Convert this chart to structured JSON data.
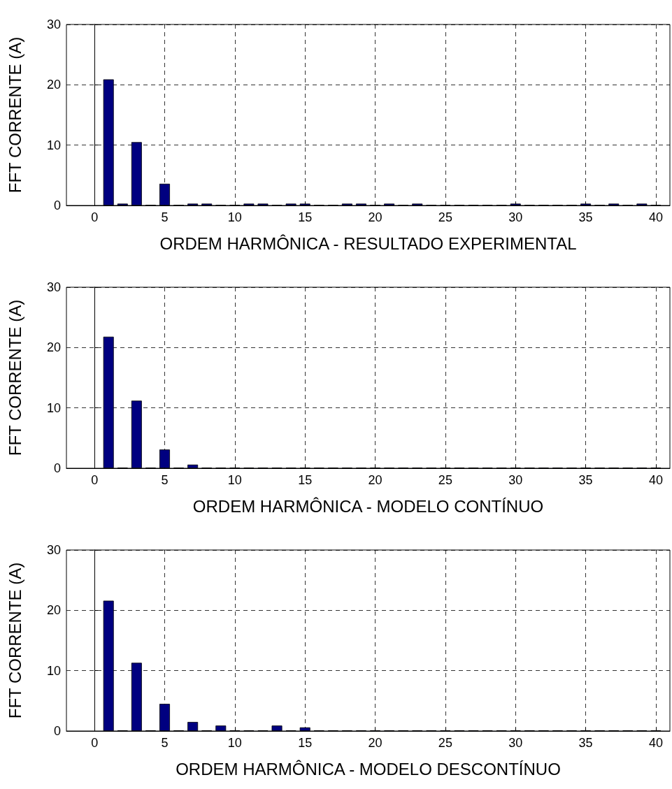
{
  "chart_data": [
    {
      "type": "bar",
      "xlabel": "ORDEM HARMÔNICA - RESULTADO EXPERIMENTAL",
      "ylabel": "FFT CORRENTE (A)",
      "color": "#000080",
      "x": [
        1,
        2,
        3,
        4,
        5,
        6,
        7,
        8,
        9,
        10,
        11,
        12,
        13,
        14,
        15,
        16,
        17,
        18,
        19,
        20,
        21,
        22,
        23,
        24,
        25,
        26,
        27,
        28,
        29,
        30,
        31,
        32,
        33,
        34,
        35,
        36,
        37,
        38,
        39,
        40
      ],
      "values": [
        20.9,
        0.3,
        10.5,
        0.1,
        3.6,
        0.1,
        0.3,
        0.3,
        0.1,
        0.1,
        0.3,
        0.3,
        0.1,
        0.3,
        0.3,
        0.1,
        0.1,
        0.3,
        0.3,
        0.1,
        0.3,
        0.1,
        0.3,
        0.1,
        0.1,
        0.1,
        0.1,
        0.1,
        0.1,
        0.3,
        0.1,
        0.1,
        0.1,
        0.1,
        0.3,
        0.1,
        0.3,
        0.1,
        0.3,
        0.1
      ],
      "xlim": [
        -2,
        41
      ],
      "xticks": [
        0,
        5,
        10,
        15,
        20,
        25,
        30,
        35,
        40
      ],
      "ylim": [
        0,
        30
      ],
      "yticks": [
        0,
        10,
        20,
        30
      ],
      "grid": true
    },
    {
      "type": "bar",
      "xlabel": "ORDEM HARMÔNICA - MODELO CONTÍNUO",
      "ylabel": "FFT CORRENTE (A)",
      "color": "#000080",
      "x": [
        1,
        2,
        3,
        4,
        5,
        6,
        7,
        8,
        9,
        10,
        11,
        12,
        13,
        14,
        15,
        16,
        17,
        18,
        19,
        20,
        21,
        22,
        23,
        24,
        25,
        26,
        27,
        28,
        29,
        30,
        31,
        32,
        33,
        34,
        35,
        36,
        37,
        38,
        39,
        40
      ],
      "values": [
        21.8,
        0.1,
        11.2,
        0.1,
        3.1,
        0.1,
        0.6,
        0.1,
        0.1,
        0.1,
        0.1,
        0.1,
        0.1,
        0.1,
        0.1,
        0.1,
        0.1,
        0.1,
        0.1,
        0.1,
        0.1,
        0.1,
        0.1,
        0.1,
        0.1,
        0.1,
        0.1,
        0.1,
        0.1,
        0.1,
        0.1,
        0.1,
        0.1,
        0.1,
        0.1,
        0.1,
        0.1,
        0.1,
        0.1,
        0.1
      ],
      "xlim": [
        -2,
        41
      ],
      "xticks": [
        0,
        5,
        10,
        15,
        20,
        25,
        30,
        35,
        40
      ],
      "ylim": [
        0,
        30
      ],
      "yticks": [
        0,
        10,
        20,
        30
      ],
      "grid": true
    },
    {
      "type": "bar",
      "xlabel": "ORDEM HARMÔNICA - MODELO DESCONTÍNUO",
      "ylabel": "FFT CORRENTE (A)",
      "color": "#000080",
      "x": [
        1,
        2,
        3,
        4,
        5,
        6,
        7,
        8,
        9,
        10,
        11,
        12,
        13,
        14,
        15,
        16,
        17,
        18,
        19,
        20,
        21,
        22,
        23,
        24,
        25,
        26,
        27,
        28,
        29,
        30,
        31,
        32,
        33,
        34,
        35,
        36,
        37,
        38,
        39,
        40
      ],
      "values": [
        21.6,
        0.1,
        11.3,
        0.1,
        4.5,
        0.1,
        1.5,
        0.1,
        0.9,
        0.1,
        0.1,
        0.1,
        0.9,
        0.1,
        0.6,
        0.1,
        0.1,
        0.1,
        0.1,
        0.1,
        0.1,
        0.1,
        0.1,
        0.1,
        0.1,
        0.1,
        0.1,
        0.1,
        0.1,
        0.1,
        0.1,
        0.1,
        0.1,
        0.1,
        0.1,
        0.1,
        0.1,
        0.1,
        0.1,
        0.1
      ],
      "xlim": [
        -2,
        41
      ],
      "xticks": [
        0,
        5,
        10,
        15,
        20,
        25,
        30,
        35,
        40
      ],
      "ylim": [
        0,
        30
      ],
      "yticks": [
        0,
        10,
        20,
        30
      ],
      "grid": true
    }
  ]
}
